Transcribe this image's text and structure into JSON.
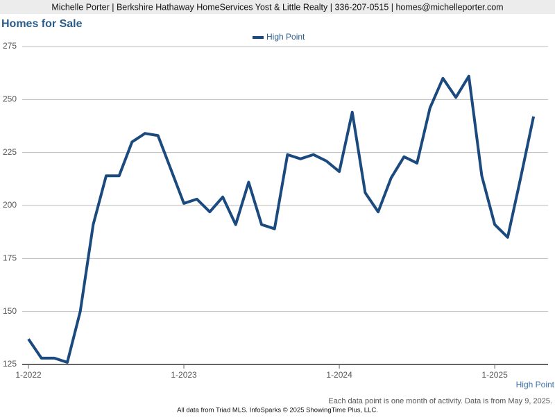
{
  "header": "Michelle Porter | Berkshire Hathaway HomeServices Yost & Little Realty | 336-207-0515 | homes@michelleporter.com",
  "chart_data": {
    "type": "line",
    "title": "Homes for Sale",
    "categories": [
      "1-2022",
      null,
      null,
      null,
      null,
      null,
      null,
      null,
      null,
      null,
      null,
      null,
      "1-2023",
      null,
      null,
      null,
      null,
      null,
      null,
      null,
      null,
      null,
      null,
      null,
      "1-2024",
      null,
      null,
      null,
      null,
      null,
      null,
      null,
      null,
      null,
      null,
      null,
      "1-2025",
      null,
      null,
      null
    ],
    "series": [
      {
        "name": "High Point",
        "color": "#1b4a7e",
        "values": [
          137,
          128,
          128,
          126,
          150,
          191,
          214,
          214,
          230,
          234,
          233,
          217,
          201,
          203,
          197,
          204,
          191,
          211,
          191,
          189,
          224,
          222,
          224,
          221,
          216,
          244,
          206,
          197,
          213,
          223,
          220,
          246,
          260,
          251,
          261,
          214,
          191,
          185,
          213,
          242
        ]
      }
    ],
    "ylim": [
      125,
      275
    ],
    "yticks": [
      125,
      150,
      175,
      200,
      225,
      250,
      275
    ],
    "grid": true,
    "legend": "top",
    "note": "Each data point is one month of activity. Data is from May 9, 2025."
  },
  "footer": "All data from Triad MLS. InfoSparks © 2025 ShowingTime Plus, LLC."
}
